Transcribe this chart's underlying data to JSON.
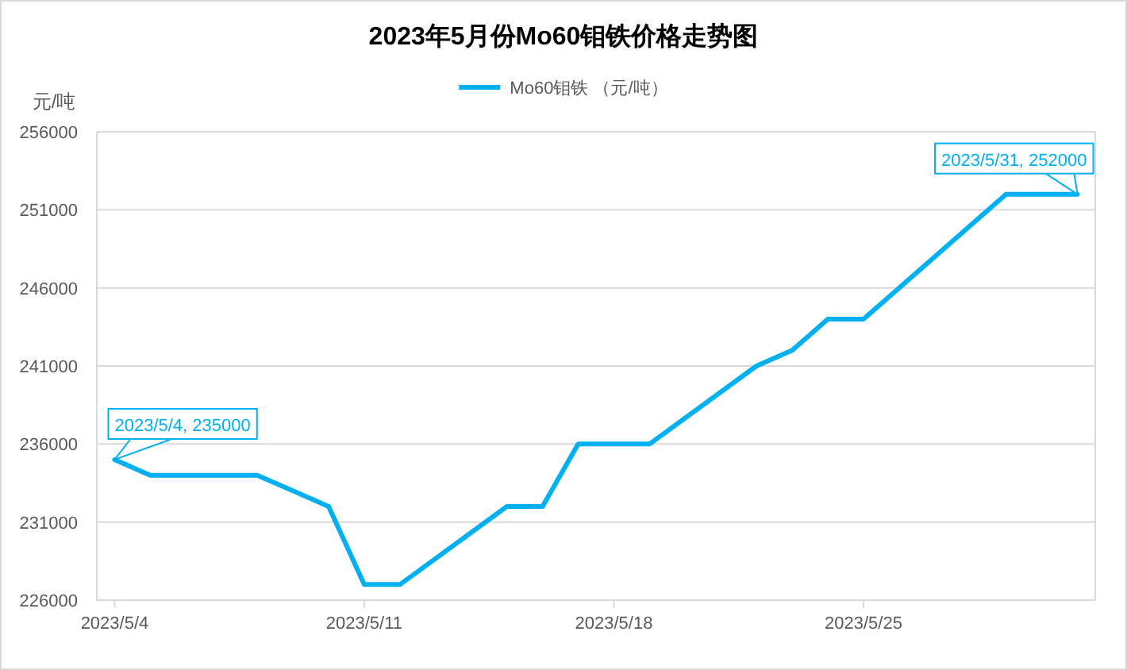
{
  "chart_data": {
    "type": "line",
    "title": "2023年5月份Mo60钼铁价格走势图",
    "ylabel": "元/吨",
    "x": [
      "2023-05-04",
      "2023-05-05",
      "2023-05-08",
      "2023-05-09",
      "2023-05-10",
      "2023-05-11",
      "2023-05-12",
      "2023-05-15",
      "2023-05-16",
      "2023-05-17",
      "2023-05-18",
      "2023-05-19",
      "2023-05-22",
      "2023-05-23",
      "2023-05-24",
      "2023-05-25",
      "2023-05-26",
      "2023-05-29",
      "2023-05-30",
      "2023-05-31"
    ],
    "series": [
      {
        "name": "Mo60钼铁 （元/吨）",
        "color": "#00b0f0",
        "values": [
          235000,
          234000,
          234000,
          233000,
          232000,
          227000,
          227000,
          232000,
          232000,
          236000,
          236000,
          236000,
          241000,
          242000,
          244000,
          244000,
          246000,
          252000,
          252000,
          252000
        ]
      }
    ],
    "xlim": [
      "2023-05-03T12:00",
      "2023-05-31T12:00"
    ],
    "xticks": [
      {
        "value": "2023-05-04",
        "label": "2023/5/4"
      },
      {
        "value": "2023-05-11",
        "label": "2023/5/11"
      },
      {
        "value": "2023-05-18",
        "label": "2023/5/18"
      },
      {
        "value": "2023-05-25",
        "label": "2023/5/25"
      }
    ],
    "ylim": [
      226000,
      256000
    ],
    "yticks": [
      226000,
      231000,
      236000,
      241000,
      246000,
      251000,
      256000
    ],
    "grid": "y",
    "legend": "top",
    "marker": "none",
    "line_style": "solid",
    "annotations": [
      {
        "text": "2023/5/4, 235000",
        "x": "2023-05-04",
        "y": 235000
      },
      {
        "text": "2023/5/31, 252000",
        "x": "2023-05-31",
        "y": 252000
      }
    ]
  }
}
